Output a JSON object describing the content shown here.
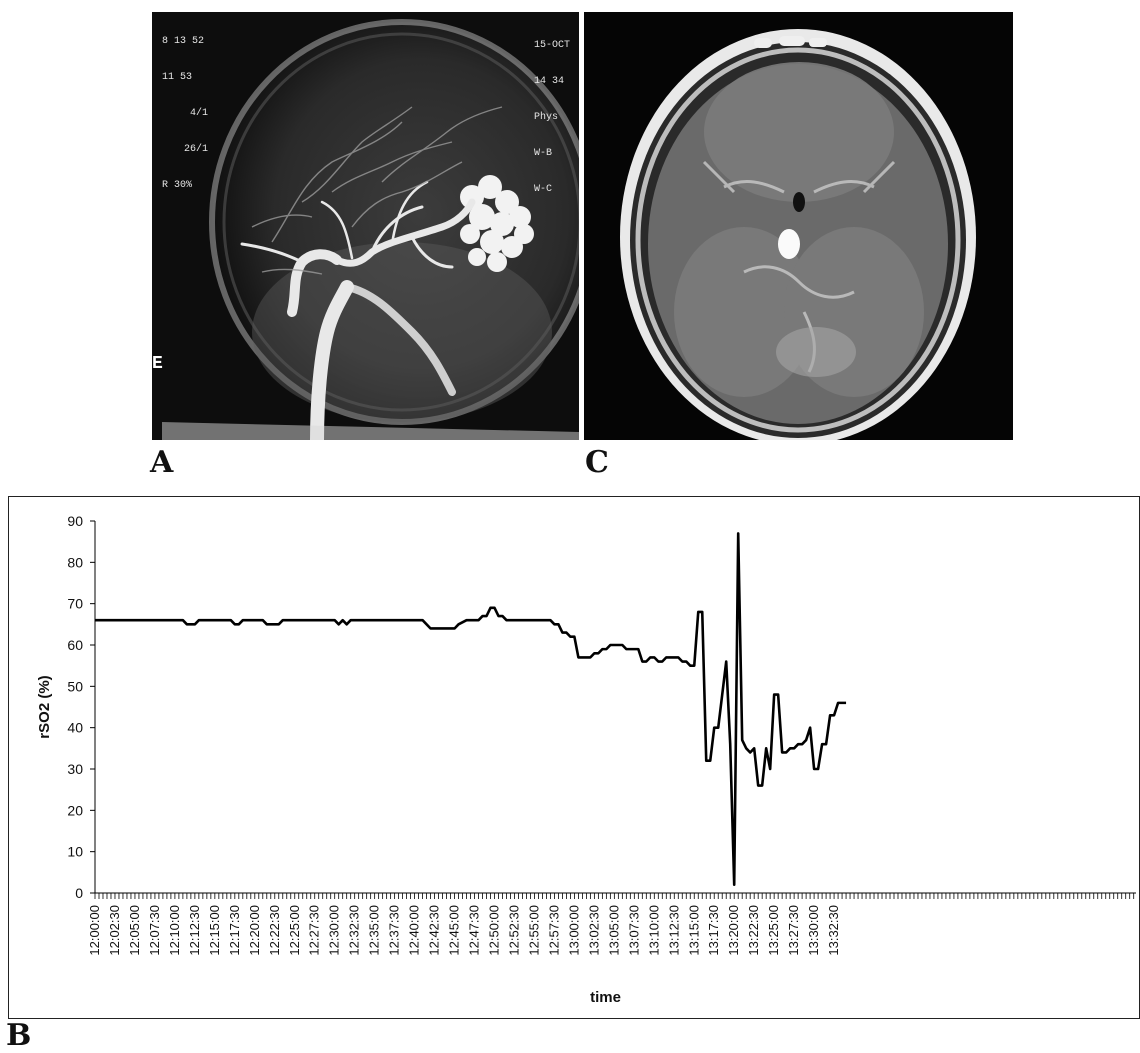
{
  "panels": {
    "a": {
      "letter": "A",
      "overlay_left": [
        "8 13 52",
        "11 53",
        "4/1",
        "26/1",
        "R 30%"
      ],
      "overlay_right": [
        "15-OCT",
        "14 34",
        "Phys",
        "W-B",
        "W-C"
      ],
      "marker": "E"
    },
    "c": {
      "letter": "C"
    },
    "b": {
      "letter": "B"
    }
  },
  "chart_data": {
    "type": "line",
    "xlabel": "time",
    "ylabel": "rSO2 (%)",
    "ylim": [
      0,
      90
    ],
    "yticks": [
      0,
      10,
      20,
      30,
      40,
      50,
      60,
      70,
      80,
      90
    ],
    "xticks": [
      "12:00:00",
      "12:02:30",
      "12:05:00",
      "12:07:30",
      "12:10:00",
      "12:12:30",
      "12:15:00",
      "12:17:30",
      "12:20:00",
      "12:22:30",
      "12:25:00",
      "12:27:30",
      "12:30:00",
      "12:32:30",
      "12:35:00",
      "12:37:30",
      "12:40:00",
      "12:42:30",
      "12:45:00",
      "12:47:30",
      "12:50:00",
      "12:52:30",
      "12:55:00",
      "12:57:30",
      "13:00:00",
      "13:02:30",
      "13:05:00",
      "13:07:30",
      "13:10:00",
      "13:12:30",
      "13:15:00",
      "13:17:30",
      "13:20:00",
      "13:22:30",
      "13:25:00",
      "13:27:30",
      "13:30:00",
      "13:32:30"
    ],
    "x_start": "12:00:00",
    "sample_interval_s": 30,
    "series": [
      {
        "color": "#000000",
        "points": [
          [
            "12:00:00",
            66
          ],
          [
            "12:11:00",
            66
          ],
          [
            "12:11:30",
            65
          ],
          [
            "12:12:30",
            65
          ],
          [
            "12:13:00",
            66
          ],
          [
            "12:17:00",
            66
          ],
          [
            "12:17:30",
            65
          ],
          [
            "12:18:00",
            65
          ],
          [
            "12:18:30",
            66
          ],
          [
            "12:21:00",
            66
          ],
          [
            "12:21:30",
            65
          ],
          [
            "12:23:00",
            65
          ],
          [
            "12:23:30",
            66
          ],
          [
            "12:30:00",
            66
          ],
          [
            "12:30:30",
            65
          ],
          [
            "12:31:00",
            66
          ],
          [
            "12:31:30",
            65
          ],
          [
            "12:32:00",
            66
          ],
          [
            "12:41:00",
            66
          ],
          [
            "12:42:00",
            64
          ],
          [
            "12:45:00",
            64
          ],
          [
            "12:45:30",
            65
          ],
          [
            "12:46:30",
            66
          ],
          [
            "12:48:00",
            66
          ],
          [
            "12:48:30",
            67
          ],
          [
            "12:49:00",
            67
          ],
          [
            "12:49:30",
            69
          ],
          [
            "12:50:00",
            69
          ],
          [
            "12:50:30",
            67
          ],
          [
            "12:51:00",
            67
          ],
          [
            "12:51:30",
            66
          ],
          [
            "12:57:00",
            66
          ],
          [
            "12:57:30",
            65
          ],
          [
            "12:58:00",
            65
          ],
          [
            "12:58:30",
            63
          ],
          [
            "12:59:00",
            63
          ],
          [
            "12:59:30",
            62
          ],
          [
            "13:00:00",
            62
          ],
          [
            "13:00:30",
            57
          ],
          [
            "13:02:00",
            57
          ],
          [
            "13:02:30",
            58
          ],
          [
            "13:03:00",
            58
          ],
          [
            "13:03:30",
            59
          ],
          [
            "13:04:00",
            59
          ],
          [
            "13:04:30",
            60
          ],
          [
            "13:06:00",
            60
          ],
          [
            "13:06:30",
            59
          ],
          [
            "13:08:00",
            59
          ],
          [
            "13:08:30",
            56
          ],
          [
            "13:09:00",
            56
          ],
          [
            "13:09:30",
            57
          ],
          [
            "13:10:00",
            57
          ],
          [
            "13:10:30",
            56
          ],
          [
            "13:11:00",
            56
          ],
          [
            "13:11:30",
            57
          ],
          [
            "13:13:00",
            57
          ],
          [
            "13:13:30",
            56
          ],
          [
            "13:14:00",
            56
          ],
          [
            "13:14:30",
            55
          ],
          [
            "13:15:00",
            55
          ],
          [
            "13:15:30",
            68
          ],
          [
            "13:16:00",
            68
          ],
          [
            "13:16:30",
            32
          ],
          [
            "13:17:00",
            32
          ],
          [
            "13:17:30",
            40
          ],
          [
            "13:18:00",
            40
          ],
          [
            "13:18:30",
            48
          ],
          [
            "13:19:00",
            56
          ],
          [
            "13:19:30",
            36
          ],
          [
            "13:20:00",
            2
          ],
          [
            "13:20:30",
            87
          ],
          [
            "13:21:00",
            37
          ],
          [
            "13:21:30",
            35
          ],
          [
            "13:22:00",
            34
          ],
          [
            "13:22:30",
            35
          ],
          [
            "13:23:00",
            26
          ],
          [
            "13:23:30",
            26
          ],
          [
            "13:24:00",
            35
          ],
          [
            "13:24:30",
            30
          ],
          [
            "13:25:00",
            48
          ],
          [
            "13:25:30",
            48
          ],
          [
            "13:26:00",
            34
          ],
          [
            "13:26:30",
            34
          ],
          [
            "13:27:00",
            35
          ],
          [
            "13:27:30",
            35
          ],
          [
            "13:28:00",
            36
          ],
          [
            "13:28:30",
            36
          ],
          [
            "13:29:00",
            37
          ],
          [
            "13:29:30",
            40
          ],
          [
            "13:30:00",
            30
          ],
          [
            "13:30:30",
            30
          ],
          [
            "13:31:00",
            36
          ],
          [
            "13:31:30",
            36
          ],
          [
            "13:32:00",
            43
          ],
          [
            "13:32:30",
            43
          ],
          [
            "13:33:00",
            46
          ],
          [
            "13:34:00",
            46
          ]
        ]
      }
    ]
  }
}
